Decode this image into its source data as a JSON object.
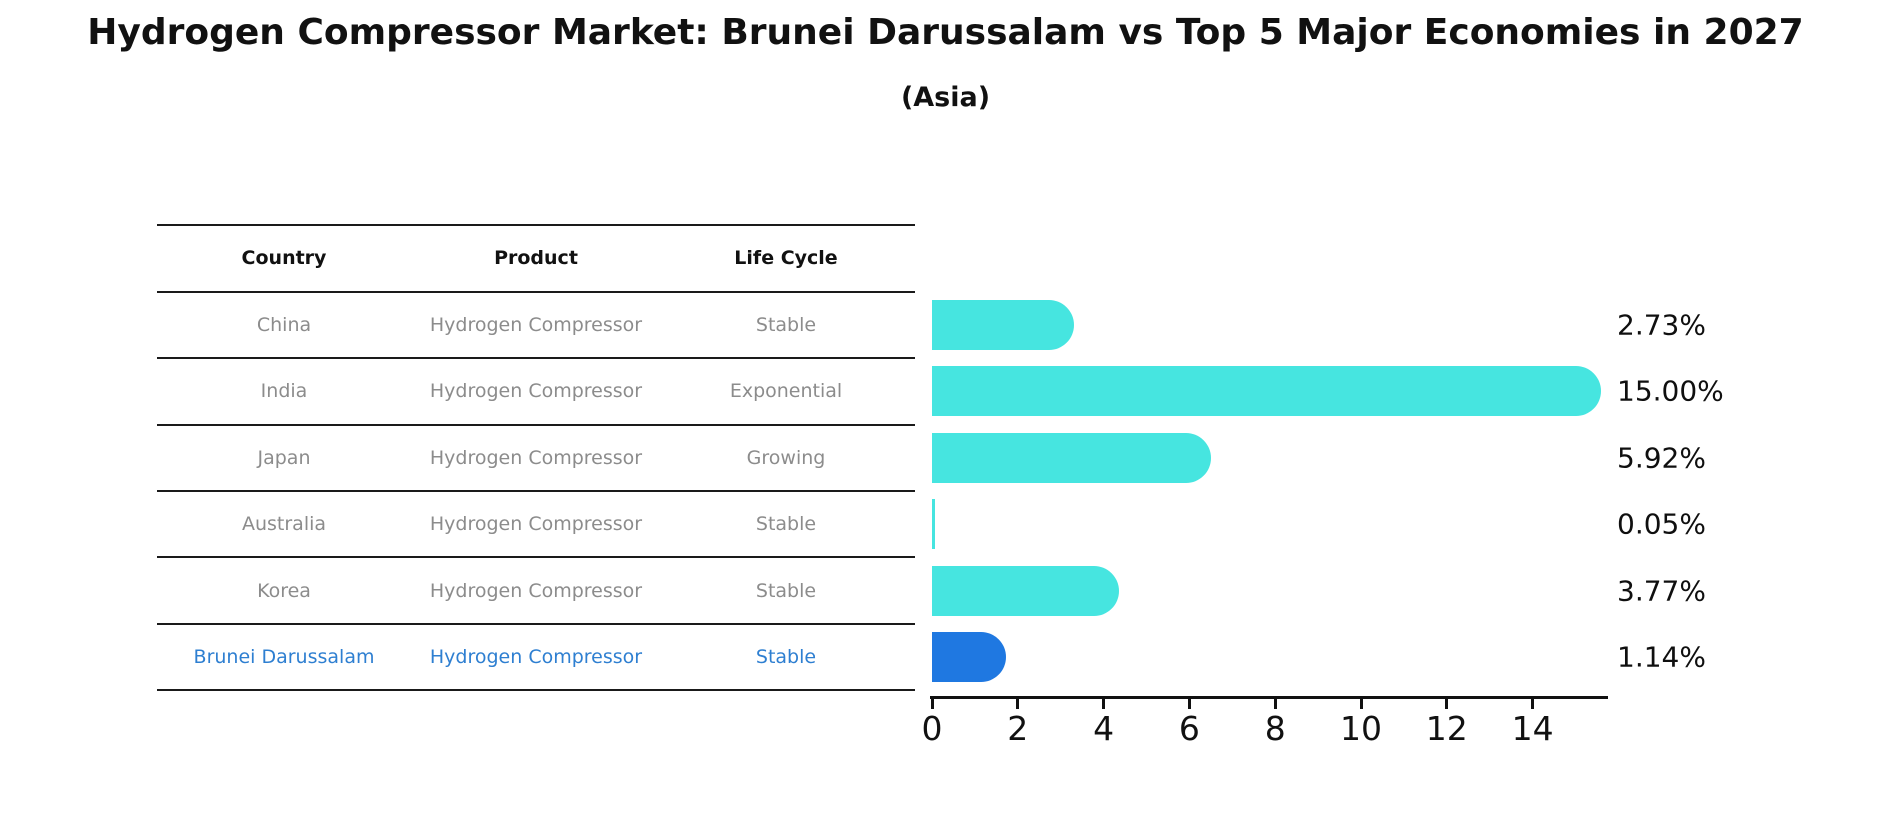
{
  "header": {
    "title": "Hydrogen Compressor Market: Brunei Darussalam vs Top 5 Major Economies in 2027",
    "subtitle": "(Asia)"
  },
  "table": {
    "headers": [
      "Country",
      "Product",
      "Life Cycle"
    ],
    "rows": [
      {
        "country": "China",
        "product": "Hydrogen Compressor",
        "life_cycle": "Stable",
        "highlight": false
      },
      {
        "country": "India",
        "product": "Hydrogen Compressor",
        "life_cycle": "Exponential",
        "highlight": false
      },
      {
        "country": "Japan",
        "product": "Hydrogen Compressor",
        "life_cycle": "Growing",
        "highlight": false
      },
      {
        "country": "Australia",
        "product": "Hydrogen Compressor",
        "life_cycle": "Stable",
        "highlight": false
      },
      {
        "country": "Korea",
        "product": "Hydrogen Compressor",
        "life_cycle": "Stable",
        "highlight": false
      },
      {
        "country": "Brunei Darussalam",
        "product": "Hydrogen Compressor",
        "life_cycle": "Stable",
        "highlight": true
      }
    ]
  },
  "chart_data": {
    "type": "bar",
    "orientation": "horizontal",
    "title": "Hydrogen Compressor Market: Brunei Darussalam vs Top 5 Major Economies in 2027 (Asia)",
    "categories": [
      "China",
      "India",
      "Japan",
      "Australia",
      "Korea",
      "Brunei Darussalam"
    ],
    "values": [
      2.73,
      15.0,
      5.92,
      0.05,
      3.77,
      1.14
    ],
    "value_labels": [
      "2.73%",
      "15.00%",
      "5.92%",
      "0.05%",
      "3.77%",
      "1.14%"
    ],
    "x_ticks": [
      0,
      2,
      4,
      6,
      8,
      10,
      12,
      14
    ],
    "xlim": [
      0,
      15.8
    ],
    "grid": false,
    "legend": false,
    "highlight_category": "Brunei Darussalam",
    "colors": {
      "bar_default": "#46E5E0",
      "bar_highlight": "#1F78E1",
      "text_highlight": "#2E7FD1",
      "text_muted": "#8C8C8C",
      "axis": "#111111"
    }
  }
}
